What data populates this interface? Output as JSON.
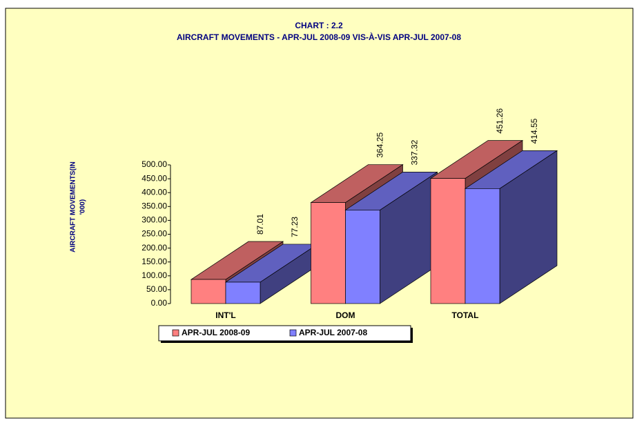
{
  "chart_data": {
    "type": "bar3d",
    "title": "CHART : 2.2",
    "subtitle": "AIRCRAFT MOVEMENTS - APR-JUL  2008-09 VIS-À-VIS APR-JUL  2007-08",
    "ylabel": [
      "AIRCRAFT MOVEMENTS(IN",
      "'000)"
    ],
    "categories": [
      "INT'L",
      "DOM",
      "TOTAL"
    ],
    "series": [
      {
        "name": "APR-JUL 2008-09",
        "color": "#ff8080",
        "values": [
          87.01,
          364.25,
          451.26
        ]
      },
      {
        "name": "APR-JUL 2007-08",
        "color": "#8080ff",
        "values": [
          77.23,
          337.32,
          414.55
        ]
      }
    ],
    "ylim": [
      0,
      500
    ],
    "yticks": [
      {
        "value": 0,
        "label": "0.00"
      },
      {
        "value": 50,
        "label": "50.00"
      },
      {
        "value": 100,
        "label": "100.00"
      },
      {
        "value": 150,
        "label": "150.00"
      },
      {
        "value": 200,
        "label": "200.00"
      },
      {
        "value": 250,
        "label": "250.00"
      },
      {
        "value": 300,
        "label": "300.00"
      },
      {
        "value": 350,
        "label": "350.00"
      },
      {
        "value": 400,
        "label": "400.00"
      },
      {
        "value": 450,
        "label": "450.00"
      },
      {
        "value": 500,
        "label": "500.00"
      }
    ],
    "legend": "bottom"
  }
}
